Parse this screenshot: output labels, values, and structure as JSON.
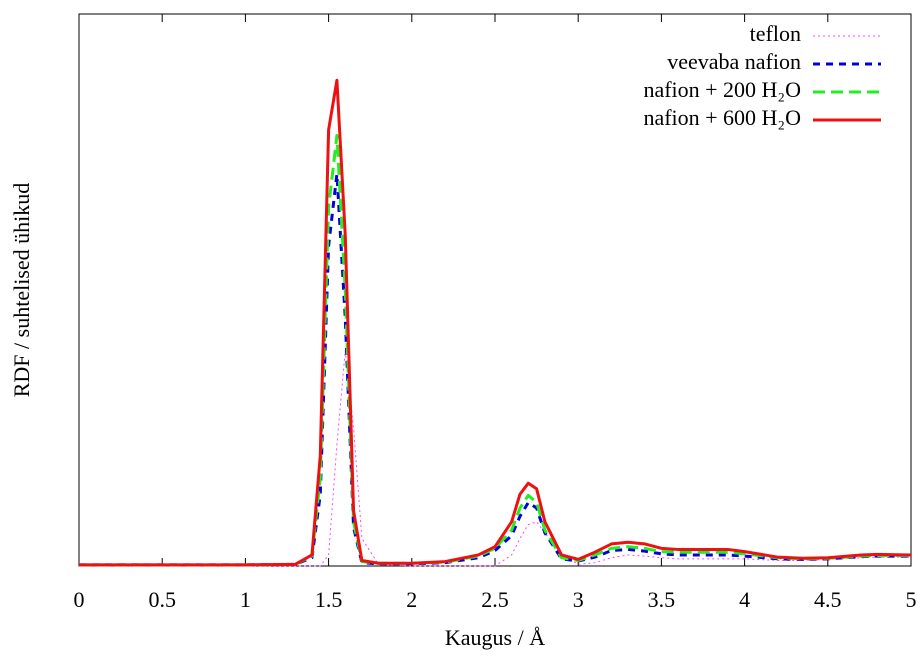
{
  "chart_data": {
    "type": "line",
    "xlabel": "Kaugus / Å",
    "ylabel": "RDF / suhtelised ühikud",
    "x": [
      0,
      0.5,
      1,
      1.3,
      1.4,
      1.45,
      1.5,
      1.55,
      1.6,
      1.65,
      1.7,
      1.8,
      2,
      2.2,
      2.4,
      2.5,
      2.6,
      2.65,
      2.7,
      2.75,
      2.8,
      2.9,
      3,
      3.1,
      3.2,
      3.3,
      3.4,
      3.5,
      3.6,
      3.8,
      3.9,
      4,
      4.2,
      4.35,
      4.5,
      4.7,
      4.8,
      5
    ],
    "series": [
      {
        "name": "teflon",
        "color": "#ff44ff",
        "dash": "2,3",
        "width": 1,
        "values": [
          0,
          0,
          0,
          0,
          0,
          0,
          2,
          22,
          39,
          25,
          5,
          0.3,
          0,
          0,
          0,
          0,
          2,
          5,
          7.5,
          8,
          6,
          2,
          0.3,
          0.6,
          1.5,
          2,
          1.8,
          1.5,
          1.3,
          1.3,
          1.3,
          1.3,
          1,
          1,
          1.2,
          1.5,
          1.6,
          1.6
        ]
      },
      {
        "name": "veevaba nafion",
        "color": "#0000dd",
        "dash": "7,6",
        "width": 3,
        "values": [
          0.2,
          0.2,
          0.2,
          0.3,
          1.5,
          13,
          58,
          71,
          45,
          7,
          0.6,
          0.4,
          0.4,
          0.6,
          1.5,
          2.8,
          5.5,
          9,
          11.5,
          10.5,
          6,
          1.3,
          0.9,
          1.6,
          2.8,
          3,
          2.7,
          2.2,
          2,
          2,
          2,
          1.8,
          1.3,
          1.2,
          1.3,
          1.7,
          1.8,
          1.8
        ]
      },
      {
        "name": "nafion + 200 H₂O",
        "color": "#22ee22",
        "dash": "12,6",
        "width": 3,
        "values": [
          0.2,
          0.2,
          0.2,
          0.3,
          1.8,
          16,
          65,
          78,
          50,
          8,
          0.8,
          0.5,
          0.5,
          0.7,
          1.8,
          3.2,
          6.5,
          10.5,
          12.8,
          11.5,
          6.5,
          1.5,
          1,
          2,
          3.2,
          3.5,
          3.2,
          2.6,
          2.5,
          2.5,
          2.5,
          2.2,
          1.5,
          1.3,
          1.4,
          1.8,
          1.9,
          1.9
        ]
      },
      {
        "name": "nafion + 600 H₂O",
        "color": "#ee1111",
        "dash": "none",
        "width": 3,
        "values": [
          0.2,
          0.2,
          0.2,
          0.3,
          2,
          20,
          79,
          88,
          60,
          10,
          1,
          0.5,
          0.5,
          0.8,
          2,
          3.5,
          8,
          13,
          15,
          14,
          8,
          2,
          1.2,
          2.5,
          4,
          4.3,
          4,
          3.2,
          3,
          3,
          3,
          2.6,
          1.6,
          1.4,
          1.5,
          2,
          2.1,
          2
        ]
      }
    ],
    "xlim": [
      0,
      5
    ],
    "xticks": [
      0,
      0.5,
      1,
      1.5,
      2,
      2.5,
      3,
      3.5,
      4,
      4.5,
      5
    ],
    "ylim": [
      0,
      100
    ],
    "legend": "top-right"
  }
}
